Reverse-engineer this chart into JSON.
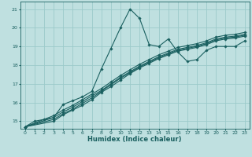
{
  "xlabel": "Humidex (Indice chaleur)",
  "ylabel": "",
  "bg_color": "#bfe0e0",
  "grid_color": "#9ccaca",
  "line_color": "#1a6060",
  "xlim": [
    -0.5,
    23.5
  ],
  "ylim": [
    14.6,
    21.4
  ],
  "xticks": [
    0,
    1,
    2,
    3,
    4,
    5,
    6,
    7,
    8,
    9,
    10,
    11,
    12,
    13,
    14,
    15,
    16,
    17,
    18,
    19,
    20,
    21,
    22,
    23
  ],
  "yticks": [
    15,
    16,
    17,
    18,
    19,
    20,
    21
  ],
  "lines": [
    {
      "x": [
        0,
        1,
        2,
        3,
        4,
        5,
        6,
        7,
        8,
        9,
        10,
        11,
        12,
        13,
        14,
        15,
        16,
        17,
        18,
        19,
        20,
        21,
        22,
        23
      ],
      "y": [
        14.7,
        15.0,
        15.1,
        15.2,
        15.9,
        16.1,
        16.3,
        16.6,
        17.8,
        18.9,
        20.0,
        21.0,
        20.5,
        19.1,
        19.0,
        19.4,
        18.7,
        18.2,
        18.3,
        18.8,
        19.0,
        19.0,
        19.0,
        19.3
      ]
    },
    {
      "x": [
        0,
        3,
        4,
        5,
        6,
        7,
        8,
        9,
        10,
        11,
        12,
        13,
        14,
        15,
        16,
        17,
        18,
        19,
        20,
        21,
        22,
        23
      ],
      "y": [
        14.7,
        15.0,
        15.35,
        15.6,
        15.85,
        16.15,
        16.55,
        16.85,
        17.2,
        17.55,
        17.85,
        18.1,
        18.35,
        18.55,
        18.75,
        18.85,
        18.95,
        19.1,
        19.3,
        19.4,
        19.45,
        19.55
      ]
    },
    {
      "x": [
        0,
        3,
        4,
        5,
        6,
        7,
        8,
        9,
        10,
        11,
        12,
        13,
        14,
        15,
        16,
        17,
        18,
        19,
        20,
        21,
        22,
        23
      ],
      "y": [
        14.7,
        15.1,
        15.4,
        15.65,
        15.95,
        16.25,
        16.6,
        16.95,
        17.3,
        17.6,
        17.9,
        18.15,
        18.4,
        18.6,
        18.8,
        18.9,
        19.0,
        19.15,
        19.35,
        19.45,
        19.5,
        19.6
      ]
    },
    {
      "x": [
        0,
        3,
        4,
        5,
        6,
        7,
        8,
        9,
        10,
        11,
        12,
        13,
        14,
        15,
        16,
        17,
        18,
        19,
        20,
        21,
        22,
        23
      ],
      "y": [
        14.7,
        15.2,
        15.5,
        15.75,
        16.05,
        16.35,
        16.65,
        17.0,
        17.35,
        17.65,
        17.95,
        18.2,
        18.45,
        18.65,
        18.85,
        18.95,
        19.05,
        19.2,
        19.4,
        19.5,
        19.55,
        19.65
      ]
    },
    {
      "x": [
        0,
        3,
        4,
        5,
        6,
        7,
        8,
        9,
        10,
        11,
        12,
        13,
        14,
        15,
        16,
        17,
        18,
        19,
        20,
        21,
        22,
        23
      ],
      "y": [
        14.7,
        15.3,
        15.6,
        15.85,
        16.15,
        16.45,
        16.75,
        17.1,
        17.45,
        17.75,
        18.05,
        18.3,
        18.55,
        18.75,
        18.95,
        19.05,
        19.15,
        19.3,
        19.5,
        19.6,
        19.65,
        19.75
      ]
    }
  ]
}
